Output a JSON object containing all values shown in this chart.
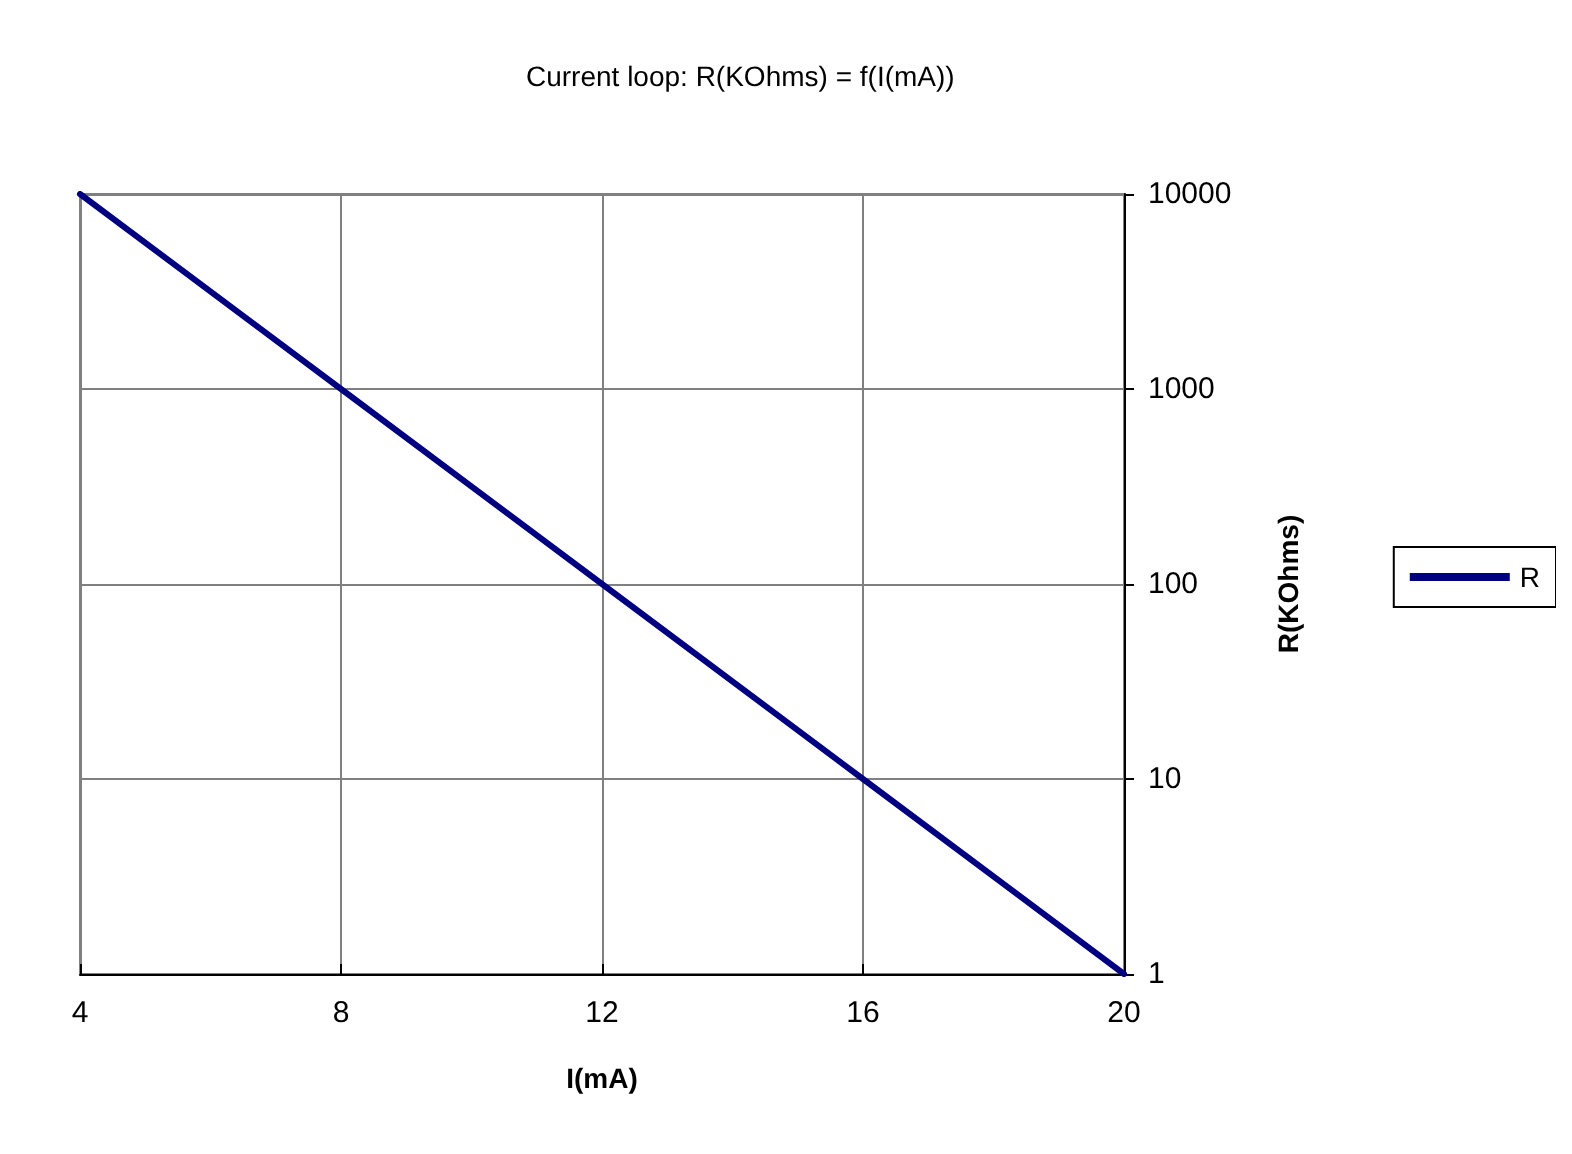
{
  "chart_data": {
    "type": "line",
    "title": "Current loop: R(KOhms) = f(I(mA))",
    "xlabel": "I(mA)",
    "ylabel": "R(KOhms)",
    "x": [
      4,
      8,
      12,
      16,
      20
    ],
    "series": [
      {
        "name": "R",
        "color": "#000080",
        "values": [
          10000,
          1000,
          100,
          10,
          1
        ]
      }
    ],
    "xlim": [
      4,
      20
    ],
    "xticks": [
      4,
      8,
      12,
      16,
      20
    ],
    "ylim": [
      1,
      10000
    ],
    "yticks": [
      1,
      10,
      100,
      1000,
      10000
    ],
    "log": "y",
    "grid": true,
    "legend": "right",
    "marker": "none",
    "line_style": "solid"
  }
}
